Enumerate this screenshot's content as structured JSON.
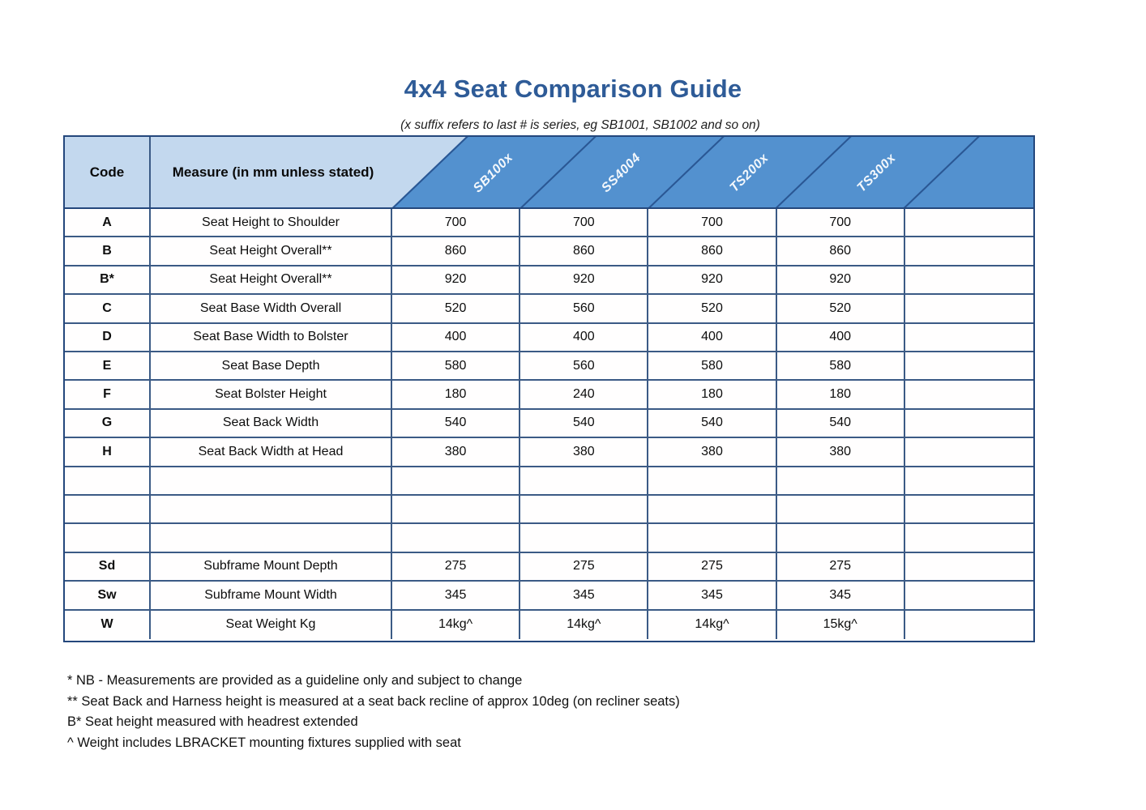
{
  "title": "4x4 Seat Comparison Guide",
  "subtitle": "(x suffix refers to last # is series, eg SB1001, SB1002 and so on)",
  "table": {
    "header": {
      "code_label": "Code",
      "measure_label": "Measure (in mm unless stated)",
      "products": [
        "SB100x",
        "SS4004",
        "TS200x",
        "TS300x"
      ]
    },
    "rows": [
      {
        "code": "A",
        "measure": "Seat Height to Shoulder",
        "values": [
          "700",
          "700",
          "700",
          "700",
          ""
        ]
      },
      {
        "code": "B",
        "measure": "Seat Height Overall**",
        "values": [
          "860",
          "860",
          "860",
          "860",
          ""
        ]
      },
      {
        "code": "B*",
        "measure": "Seat Height Overall**",
        "values": [
          "920",
          "920",
          "920",
          "920",
          ""
        ]
      },
      {
        "code": "C",
        "measure": "Seat Base Width Overall",
        "values": [
          "520",
          "560",
          "520",
          "520",
          ""
        ]
      },
      {
        "code": "D",
        "measure": "Seat Base Width to Bolster",
        "values": [
          "400",
          "400",
          "400",
          "400",
          ""
        ]
      },
      {
        "code": "E",
        "measure": "Seat Base Depth",
        "values": [
          "580",
          "560",
          "580",
          "580",
          ""
        ]
      },
      {
        "code": "F",
        "measure": "Seat Bolster Height",
        "values": [
          "180",
          "240",
          "180",
          "180",
          ""
        ]
      },
      {
        "code": "G",
        "measure": "Seat Back Width",
        "values": [
          "540",
          "540",
          "540",
          "540",
          ""
        ]
      },
      {
        "code": "H",
        "measure": "Seat Back Width at Head",
        "values": [
          "380",
          "380",
          "380",
          "380",
          ""
        ]
      },
      {
        "code": "",
        "measure": "",
        "values": [
          "",
          "",
          "",
          "",
          ""
        ]
      },
      {
        "code": "",
        "measure": "",
        "values": [
          "",
          "",
          "",
          "",
          ""
        ]
      },
      {
        "code": "",
        "measure": "",
        "values": [
          "",
          "",
          "",
          "",
          ""
        ]
      },
      {
        "code": "Sd",
        "measure": "Subframe Mount Depth",
        "values": [
          "275",
          "275",
          "275",
          "275",
          ""
        ]
      },
      {
        "code": "Sw",
        "measure": "Subframe Mount Width",
        "values": [
          "345",
          "345",
          "345",
          "345",
          ""
        ]
      },
      {
        "code": "W",
        "measure": "Seat Weight Kg",
        "values": [
          "14kg^",
          "14kg^",
          "14kg^",
          "15kg^",
          ""
        ]
      }
    ]
  },
  "footnotes": [
    "* NB - Measurements are provided as a guideline only and subject to change",
    "** Seat Back and Harness height is measured at a seat back recline of approx 10deg (on recliner seats)",
    "B* Seat height measured with headrest extended",
    "^ Weight includes LBRACKET mounting fixtures supplied with seat"
  ],
  "colors": {
    "title_blue": "#2e5b97",
    "header_light_blue": "#c3d8ee",
    "header_dark_blue": "#5391cf",
    "diagonal_line": "#2a5794",
    "grid_line": "#3b5a85",
    "outer_border": "#24477c"
  }
}
